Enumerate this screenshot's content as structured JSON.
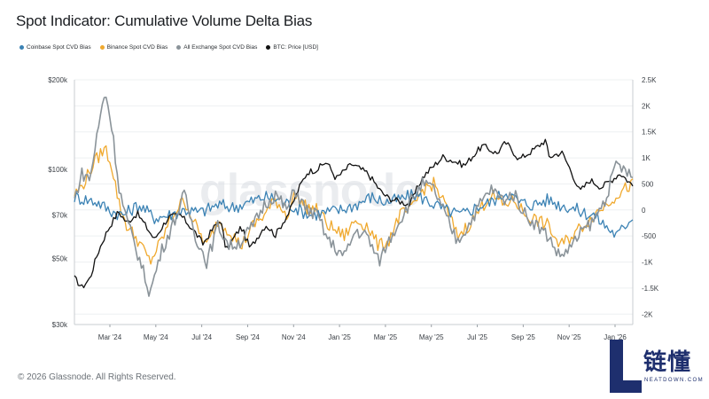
{
  "title": "Spot Indicator: Cumulative Volume Delta Bias",
  "copyright": "© 2026 Glassnode. All Rights Reserved.",
  "watermark": "glassnode",
  "logo": {
    "text": "链懂",
    "subtext": "NEATDOWN.COM",
    "color": "#1e2f6e",
    "icon": "L-logo-icon"
  },
  "legend": [
    {
      "name": "Coinbase Spot CVD Bias",
      "color": "#3b82b4"
    },
    {
      "name": "Binance Spot CVD Bias",
      "color": "#f0a92e"
    },
    {
      "name": "All Exchange Spot CVD Bias",
      "color": "#8a9399"
    },
    {
      "name": "BTC: Price [USD]",
      "color": "#111111"
    }
  ],
  "chart_data": {
    "type": "line",
    "x_ticks": [
      "Mar '24",
      "May '24",
      "Jul '24",
      "Sep '24",
      "Nov '24",
      "Jan '25",
      "Mar '25",
      "May '25",
      "Jul '25",
      "Sep '25",
      "Nov '25",
      "Jan '26"
    ],
    "left_axis": {
      "scale": "log",
      "ticks": [
        "$200k",
        "$100k",
        "$70k",
        "$50k",
        "$30k"
      ],
      "tick_values": [
        200000,
        100000,
        70000,
        50000,
        30000
      ],
      "range": [
        30000,
        200000
      ]
    },
    "right_axis": {
      "ticks": [
        "2.5K",
        "2K",
        "1.5K",
        "1K",
        "500",
        "0",
        "-500",
        "-1K",
        "-1.5K",
        "-2K"
      ],
      "tick_values": [
        2500,
        2000,
        1500,
        1000,
        500,
        0,
        -500,
        -1000,
        -1500,
        -2000
      ],
      "range": [
        -2200,
        2500
      ]
    },
    "x_range": [
      "2024-01-15",
      "2026-01-31"
    ],
    "series": [
      {
        "name": "BTC: Price [USD]",
        "axis": "left",
        "color": "#111111",
        "points": [
          [
            "2024-01-15",
            43000
          ],
          [
            "2024-01-25",
            40000
          ],
          [
            "2024-02-05",
            43000
          ],
          [
            "2024-02-15",
            52000
          ],
          [
            "2024-02-28",
            62000
          ],
          [
            "2024-03-14",
            72000
          ],
          [
            "2024-03-25",
            66000
          ],
          [
            "2024-04-08",
            71000
          ],
          [
            "2024-04-20",
            64000
          ],
          [
            "2024-05-01",
            58000
          ],
          [
            "2024-05-20",
            69000
          ],
          [
            "2024-06-05",
            70000
          ],
          [
            "2024-06-25",
            61000
          ],
          [
            "2024-07-05",
            56000
          ],
          [
            "2024-07-28",
            68000
          ],
          [
            "2024-08-05",
            53000
          ],
          [
            "2024-08-25",
            64000
          ],
          [
            "2024-09-06",
            54000
          ],
          [
            "2024-09-27",
            65000
          ],
          [
            "2024-10-10",
            60000
          ],
          [
            "2024-10-29",
            72000
          ],
          [
            "2024-11-12",
            88000
          ],
          [
            "2024-11-22",
            98000
          ],
          [
            "2024-12-05",
            100000
          ],
          [
            "2024-12-17",
            106000
          ],
          [
            "2024-12-30",
            93000
          ],
          [
            "2025-01-20",
            104000
          ],
          [
            "2025-02-10",
            97000
          ],
          [
            "2025-02-28",
            84000
          ],
          [
            "2025-03-10",
            80000
          ],
          [
            "2025-04-08",
            76000
          ],
          [
            "2025-04-25",
            94000
          ],
          [
            "2025-05-22",
            110000
          ],
          [
            "2025-06-20",
            103000
          ],
          [
            "2025-07-14",
            120000
          ],
          [
            "2025-08-02",
            113000
          ],
          [
            "2025-08-14",
            123000
          ],
          [
            "2025-09-01",
            108000
          ],
          [
            "2025-09-20",
            116000
          ],
          [
            "2025-10-06",
            125000
          ],
          [
            "2025-10-11",
            110000
          ],
          [
            "2025-10-28",
            114000
          ],
          [
            "2025-11-21",
            84000
          ],
          [
            "2025-12-05",
            92000
          ],
          [
            "2025-12-20",
            87000
          ],
          [
            "2026-01-05",
            93000
          ],
          [
            "2026-01-14",
            97000
          ],
          [
            "2026-01-31",
            88000
          ]
        ]
      },
      {
        "name": "Coinbase Spot CVD Bias",
        "axis": "right",
        "color": "#3b82b4",
        "points": [
          [
            "2024-01-15",
            250
          ],
          [
            "2024-02-15",
            150
          ],
          [
            "2024-03-01",
            0
          ],
          [
            "2024-03-20",
            -100
          ],
          [
            "2024-04-10",
            100
          ],
          [
            "2024-05-01",
            -150
          ],
          [
            "2024-05-20",
            -100
          ],
          [
            "2024-06-10",
            0
          ],
          [
            "2024-07-01",
            -50
          ],
          [
            "2024-07-25",
            100
          ],
          [
            "2024-08-15",
            50
          ],
          [
            "2024-09-05",
            150
          ],
          [
            "2024-09-25",
            250
          ],
          [
            "2024-10-15",
            200
          ],
          [
            "2024-11-05",
            50
          ],
          [
            "2024-11-25",
            -100
          ],
          [
            "2024-12-15",
            -50
          ],
          [
            "2025-01-05",
            0
          ],
          [
            "2025-01-25",
            100
          ],
          [
            "2025-02-15",
            250
          ],
          [
            "2025-03-05",
            150
          ],
          [
            "2025-03-25",
            200
          ],
          [
            "2025-04-15",
            300
          ],
          [
            "2025-05-05",
            150
          ],
          [
            "2025-05-25",
            0
          ],
          [
            "2025-06-15",
            -100
          ],
          [
            "2025-07-05",
            50
          ],
          [
            "2025-07-25",
            150
          ],
          [
            "2025-08-15",
            350
          ],
          [
            "2025-09-01",
            150
          ],
          [
            "2025-09-20",
            100
          ],
          [
            "2025-10-10",
            200
          ],
          [
            "2025-10-25",
            100
          ],
          [
            "2025-11-10",
            50
          ],
          [
            "2025-11-25",
            -50
          ],
          [
            "2025-12-10",
            -100
          ],
          [
            "2025-12-25",
            -300
          ],
          [
            "2026-01-10",
            -500
          ],
          [
            "2026-01-31",
            -100
          ]
        ]
      },
      {
        "name": "Binance Spot CVD Bias",
        "axis": "right",
        "color": "#f0a92e",
        "points": [
          [
            "2024-01-15",
            300
          ],
          [
            "2024-01-25",
            450
          ],
          [
            "2024-02-10",
            900
          ],
          [
            "2024-02-25",
            1200
          ],
          [
            "2024-03-05",
            850
          ],
          [
            "2024-03-15",
            100
          ],
          [
            "2024-03-25",
            -300
          ],
          [
            "2024-04-10",
            -600
          ],
          [
            "2024-04-25",
            -1000
          ],
          [
            "2024-05-10",
            -600
          ],
          [
            "2024-05-25",
            -100
          ],
          [
            "2024-06-10",
            200
          ],
          [
            "2024-06-25",
            -300
          ],
          [
            "2024-07-10",
            -700
          ],
          [
            "2024-07-25",
            -200
          ],
          [
            "2024-08-10",
            -400
          ],
          [
            "2024-08-25",
            -700
          ],
          [
            "2024-09-10",
            -300
          ],
          [
            "2024-09-25",
            -100
          ],
          [
            "2024-10-10",
            200
          ],
          [
            "2024-10-25",
            -100
          ],
          [
            "2024-11-05",
            300
          ],
          [
            "2024-11-20",
            50
          ],
          [
            "2024-12-05",
            0
          ],
          [
            "2024-12-20",
            -300
          ],
          [
            "2025-01-10",
            -500
          ],
          [
            "2025-01-25",
            -200
          ],
          [
            "2025-02-10",
            -300
          ],
          [
            "2025-02-25",
            -700
          ],
          [
            "2025-03-10",
            -600
          ],
          [
            "2025-03-25",
            -100
          ],
          [
            "2025-04-10",
            0
          ],
          [
            "2025-04-25",
            400
          ],
          [
            "2025-05-10",
            500
          ],
          [
            "2025-05-25",
            100
          ],
          [
            "2025-06-10",
            -500
          ],
          [
            "2025-06-25",
            -300
          ],
          [
            "2025-07-10",
            0
          ],
          [
            "2025-07-25",
            300
          ],
          [
            "2025-08-10",
            100
          ],
          [
            "2025-08-25",
            200
          ],
          [
            "2025-09-10",
            -100
          ],
          [
            "2025-09-25",
            -200
          ],
          [
            "2025-10-10",
            -300
          ],
          [
            "2025-10-25",
            -700
          ],
          [
            "2025-11-10",
            -500
          ],
          [
            "2025-11-25",
            -300
          ],
          [
            "2025-12-10",
            -100
          ],
          [
            "2025-12-25",
            100
          ],
          [
            "2026-01-10",
            300
          ],
          [
            "2026-01-31",
            500
          ]
        ]
      },
      {
        "name": "All Exchange Spot CVD Bias",
        "axis": "right",
        "color": "#8a9399",
        "points": [
          [
            "2024-01-15",
            200
          ],
          [
            "2024-01-25",
            700
          ],
          [
            "2024-02-05",
            600
          ],
          [
            "2024-02-15",
            1500
          ],
          [
            "2024-02-25",
            2300
          ],
          [
            "2024-03-05",
            1600
          ],
          [
            "2024-03-15",
            400
          ],
          [
            "2024-03-25",
            -200
          ],
          [
            "2024-04-10",
            -900
          ],
          [
            "2024-04-25",
            -1600
          ],
          [
            "2024-05-10",
            -800
          ],
          [
            "2024-05-25",
            -300
          ],
          [
            "2024-06-10",
            300
          ],
          [
            "2024-06-25",
            -500
          ],
          [
            "2024-07-10",
            -1000
          ],
          [
            "2024-07-25",
            -300
          ],
          [
            "2024-08-10",
            -700
          ],
          [
            "2024-08-25",
            -600
          ],
          [
            "2024-09-10",
            -300
          ],
          [
            "2024-09-25",
            100
          ],
          [
            "2024-10-10",
            300
          ],
          [
            "2024-10-25",
            0
          ],
          [
            "2024-11-05",
            400
          ],
          [
            "2024-11-20",
            0
          ],
          [
            "2024-12-05",
            -100
          ],
          [
            "2024-12-20",
            -600
          ],
          [
            "2025-01-10",
            -900
          ],
          [
            "2025-01-25",
            -400
          ],
          [
            "2025-02-10",
            -500
          ],
          [
            "2025-02-25",
            -1000
          ],
          [
            "2025-03-10",
            -600
          ],
          [
            "2025-03-25",
            -200
          ],
          [
            "2025-04-10",
            200
          ],
          [
            "2025-04-25",
            500
          ],
          [
            "2025-05-10",
            400
          ],
          [
            "2025-05-25",
            -100
          ],
          [
            "2025-06-10",
            -600
          ],
          [
            "2025-06-25",
            -300
          ],
          [
            "2025-07-10",
            100
          ],
          [
            "2025-07-25",
            400
          ],
          [
            "2025-08-10",
            200
          ],
          [
            "2025-08-25",
            300
          ],
          [
            "2025-09-10",
            -100
          ],
          [
            "2025-09-25",
            -300
          ],
          [
            "2025-10-10",
            -500
          ],
          [
            "2025-10-25",
            -900
          ],
          [
            "2025-11-10",
            -700
          ],
          [
            "2025-11-25",
            -400
          ],
          [
            "2025-12-10",
            -200
          ],
          [
            "2025-12-25",
            200
          ],
          [
            "2026-01-10",
            900
          ],
          [
            "2026-01-31",
            600
          ]
        ]
      }
    ]
  }
}
